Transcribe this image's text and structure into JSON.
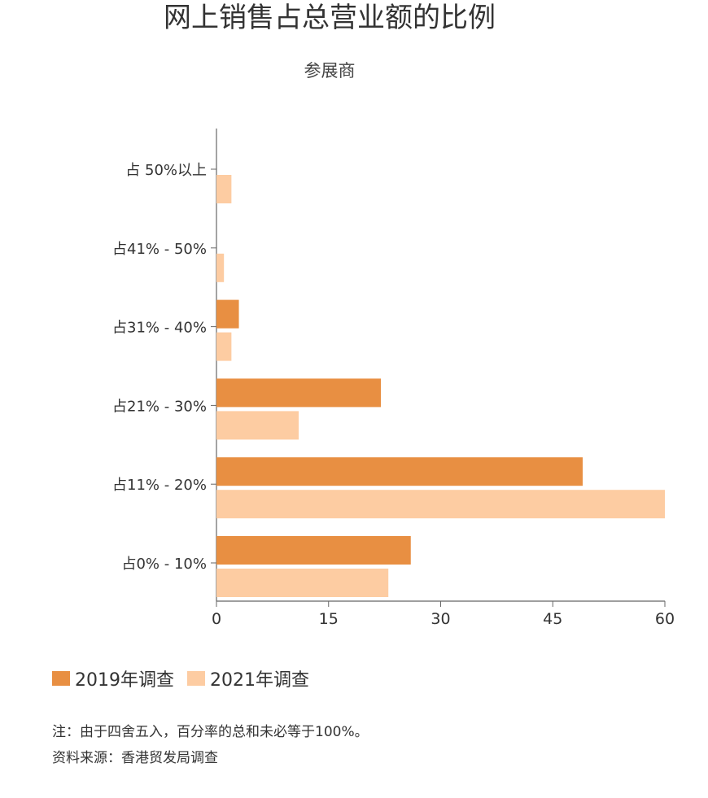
{
  "title": "网上销售占总营业额的比例",
  "subtitle": "参展商",
  "legend": [
    {
      "label": "2019年调查",
      "color": "#E88F42"
    },
    {
      "label": "2021年调查",
      "color": "#FDCCA2"
    }
  ],
  "notes": {
    "note": "注：由于四舍五入，百分率的总和未必等于100%。",
    "source": "资料来源：香港贸发局调查"
  },
  "chart_data": {
    "type": "bar",
    "orientation": "horizontal",
    "categories": [
      "占 50%以上",
      "占41% - 50%",
      "占31% - 40%",
      "占21% - 30%",
      "占11% - 20%",
      "占0% - 10%"
    ],
    "series": [
      {
        "name": "2019年调查",
        "color": "#E88F42",
        "values": [
          0,
          0,
          3,
          22,
          49,
          26
        ]
      },
      {
        "name": "2021年调查",
        "color": "#FDCCA2",
        "values": [
          2,
          1,
          2,
          11,
          60,
          23
        ]
      }
    ],
    "xlim": [
      0,
      60
    ],
    "xticks": [
      0,
      15,
      30,
      45,
      60
    ],
    "grid": false,
    "legend_position": "bottom-left"
  }
}
